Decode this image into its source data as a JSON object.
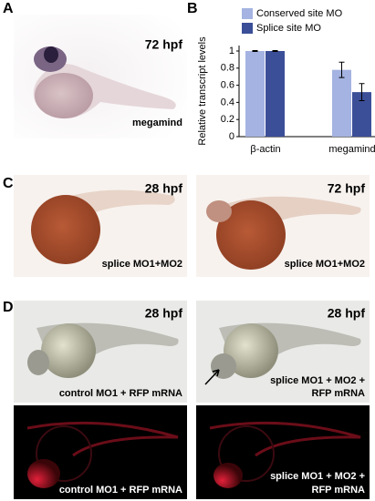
{
  "panels": {
    "A": {
      "letter": "A",
      "stage": "72 hpf",
      "label": "megamind"
    },
    "B": {
      "letter": "B"
    },
    "C": {
      "letter": "C",
      "left": {
        "stage": "28 hpf",
        "label": "splice MO1+MO2"
      },
      "right": {
        "stage": "72 hpf",
        "label": "splice MO1+MO2"
      }
    },
    "D": {
      "letter": "D",
      "top_left": {
        "stage": "28 hpf",
        "label": "control MO1 + RFP mRNA"
      },
      "top_right": {
        "stage": "28 hpf",
        "label_line1": "splice MO1 + MO2 +",
        "label_line2": "RFP mRNA"
      },
      "bottom_left": {
        "label": "control MO1 + RFP mRNA"
      },
      "bottom_right": {
        "label_line1": "splice MO1 + MO2 +",
        "label_line2": "RFP mRNA"
      }
    }
  },
  "chart_data": {
    "type": "bar",
    "y_label": "Relative transcript levels",
    "categories": [
      "β-actin",
      "megamind"
    ],
    "series": [
      {
        "name": "Conserved site MO",
        "color": "#a4b3e1",
        "values": [
          1,
          0.78
        ],
        "errors": [
          0.005,
          0.09
        ]
      },
      {
        "name": "Splice site MO",
        "color": "#3b4f98",
        "values": [
          1,
          0.52
        ],
        "errors": [
          0.005,
          0.1
        ]
      }
    ],
    "ylim": [
      0,
      1
    ],
    "yticks": [
      0,
      0.2,
      0.4,
      0.6,
      0.8,
      1
    ]
  }
}
